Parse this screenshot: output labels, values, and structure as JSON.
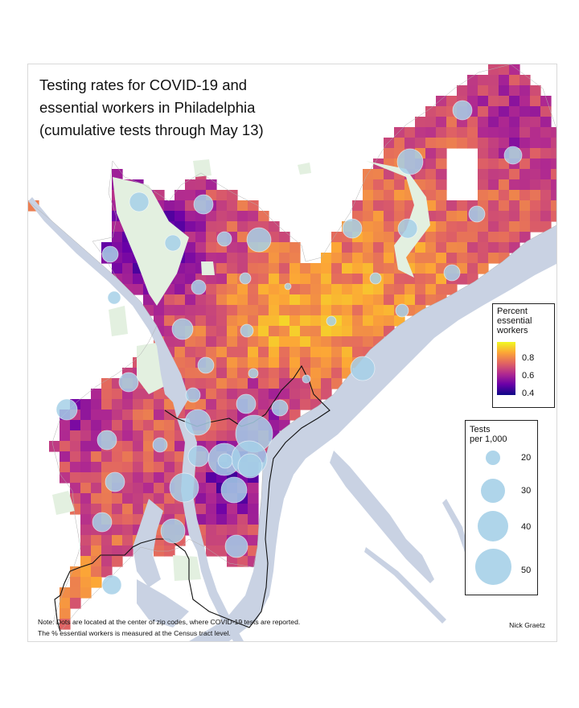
{
  "title_lines": [
    "Testing rates for COVID-19 and",
    "essential workers in Philadelphia",
    "(cumulative tests through May 13)"
  ],
  "legend_essential": {
    "title_lines": [
      "Percent",
      "essential",
      "workers"
    ],
    "ticks": [
      "0.8",
      "0.6",
      "0.4"
    ],
    "scale_colors": [
      "#f0f921",
      "#fca636",
      "#e16462",
      "#b12a90",
      "#6a00a8",
      "#0d0887"
    ]
  },
  "legend_tests": {
    "title_lines": [
      "Tests",
      "per 1,000"
    ],
    "sizes": [
      "20",
      "30",
      "40",
      "50"
    ]
  },
  "note_lines": [
    "Note: Dots are located at the center of zip codes, where COVID-19 tests are reported.",
    "The % essential workers is measured at the Census tract level."
  ],
  "author": "Nick Graetz",
  "colors": {
    "water": "#c9d2e3",
    "park": "#e3f0e0",
    "dot": "#a6d0e8",
    "border": "#111111"
  }
}
